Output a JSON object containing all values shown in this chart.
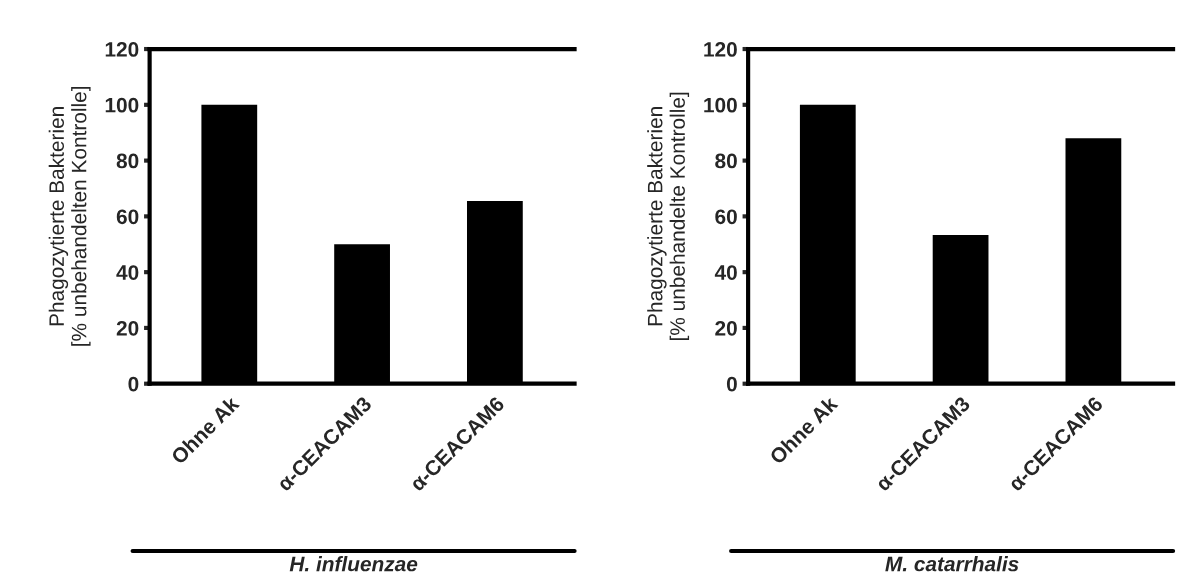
{
  "chart_data": [
    {
      "type": "bar",
      "ylabel": "Phagozytierte Bakterien\n[% unbehandelten Kontrolle]",
      "categories": [
        "Ohne Ak",
        "α-CEACAM3",
        "α-CEACAM6"
      ],
      "values": [
        100,
        50,
        65.5
      ],
      "color": "#000000",
      "ylim": [
        0,
        120
      ],
      "yticks": [
        0,
        20,
        40,
        60,
        80,
        100,
        120
      ],
      "grid": false,
      "annotations": [
        "H. influenzae"
      ]
    },
    {
      "type": "bar",
      "ylabel": "Phagozytierte Bakterien\n[% unbehandelte Kontrolle]",
      "categories": [
        "Ohne Ak",
        "α-CEACAM3",
        "α-CEACAM6"
      ],
      "values": [
        100,
        53.3,
        88
      ],
      "color": "#000000",
      "ylim": [
        0,
        120
      ],
      "yticks": [
        0,
        20,
        40,
        60,
        80,
        100,
        120
      ],
      "grid": false,
      "annotations": [
        "M. catarrhalis"
      ]
    }
  ]
}
